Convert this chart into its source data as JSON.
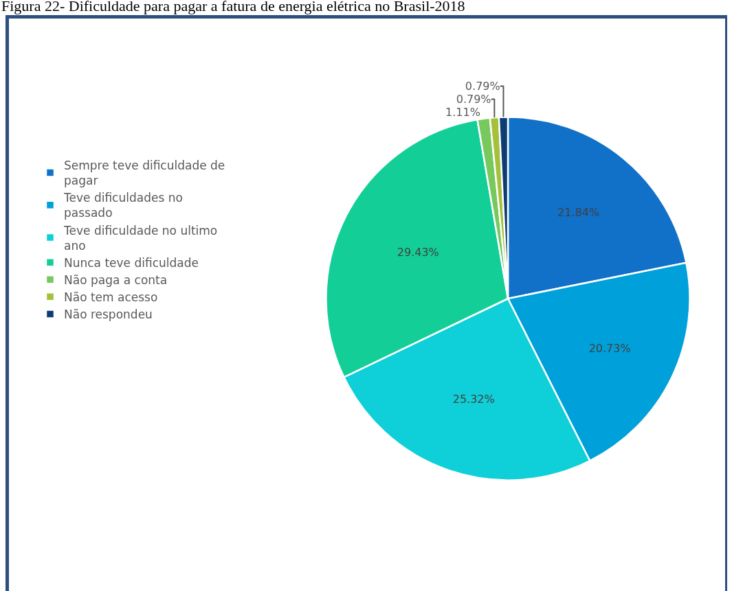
{
  "chart_data": {
    "type": "pie",
    "title": "Figura 22- Dificuldade para pagar a fatura de energia elétrica no Brasil-2018",
    "categories": [
      "Sempre teve dificuldade de pagar",
      "Teve dificuldades no passado",
      "Teve dificuldade no ultimo ano",
      "Nunca teve dificuldade",
      "Não paga a conta",
      "Não tem acesso",
      "Não respondeu"
    ],
    "values": [
      21.84,
      20.73,
      25.32,
      29.43,
      1.11,
      0.79,
      0.79
    ],
    "value_labels": [
      "21.84%",
      "20.73%",
      "25.32%",
      "29.43%",
      "1.11%",
      "0.79%",
      "0.79%"
    ],
    "colors": [
      "#1170c8",
      "#00a0da",
      "#0fcfd8",
      "#13cf97",
      "#77c95e",
      "#a5c13c",
      "#0d3d73"
    ],
    "legend": "left"
  }
}
